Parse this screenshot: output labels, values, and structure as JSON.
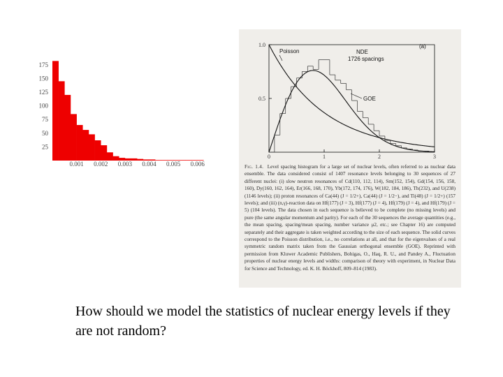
{
  "chart_data": [
    {
      "type": "bar",
      "title": "",
      "xlabel": "",
      "ylabel": "",
      "ylim": [
        0,
        185
      ],
      "xlim": [
        0,
        0.0065
      ],
      "bin_width": 0.00025,
      "bin_starts": [
        0.0,
        0.00025,
        0.0005,
        0.00075,
        0.001,
        0.00125,
        0.0015,
        0.00175,
        0.002,
        0.00225,
        0.0025,
        0.00275,
        0.003,
        0.00325,
        0.0035,
        0.00375,
        0.004,
        0.00425,
        0.0045,
        0.00475,
        0.005,
        0.00525,
        0.0055,
        0.00575,
        0.006
      ],
      "values": [
        182,
        145,
        120,
        85,
        65,
        56,
        48,
        37,
        28,
        15,
        8,
        5,
        4,
        4,
        3,
        2,
        2,
        1,
        1,
        1,
        1,
        1,
        1,
        1,
        1
      ],
      "bar_color": "#ee0000",
      "y_ticks": [
        25,
        50,
        75,
        100,
        125,
        150,
        175
      ],
      "y_tick_labels": [
        "25",
        "50",
        "75",
        "100",
        "125",
        "150",
        "175"
      ],
      "x_ticks": [
        0.001,
        0.002,
        0.003,
        0.004,
        0.005,
        0.006
      ],
      "x_tick_labels": [
        "0.001",
        "0.002",
        "0.003",
        "0.004",
        "0.005",
        "0.006"
      ]
    },
    {
      "type": "line",
      "title": "",
      "xlabel": "",
      "ylabel": "",
      "xlim": [
        0,
        3
      ],
      "ylim": [
        0,
        1.0
      ],
      "x_ticks": [
        0,
        1,
        2,
        3
      ],
      "x_tick_labels": [
        "0",
        "1",
        "2",
        "3"
      ],
      "y_ticks": [
        0.5,
        1.0
      ],
      "y_tick_labels": [
        "0.5",
        "1.0"
      ],
      "panel_label": "(a)",
      "legend_lines": [
        "NDE",
        "1726 spacings"
      ],
      "curve_labels": {
        "poisson": "Poisson",
        "goe": "GOE"
      },
      "histogram": {
        "bin_width": 0.1,
        "bin_starts": [
          0.0,
          0.1,
          0.2,
          0.3,
          0.4,
          0.5,
          0.6,
          0.7,
          0.8,
          0.9,
          1.0,
          1.1,
          1.2,
          1.3,
          1.4,
          1.5,
          1.6,
          1.7,
          1.8,
          1.9,
          2.0,
          2.1,
          2.2,
          2.3,
          2.4,
          2.5,
          2.6,
          2.7,
          2.8,
          2.9
        ],
        "values": [
          0.0,
          0.16,
          0.36,
          0.5,
          0.61,
          0.69,
          0.75,
          0.8,
          0.77,
          0.86,
          0.86,
          0.72,
          0.67,
          0.64,
          0.58,
          0.48,
          0.38,
          0.32,
          0.26,
          0.2,
          0.15,
          0.11,
          0.08,
          0.06,
          0.04,
          0.03,
          0.02,
          0.01,
          0.01,
          0.0
        ]
      },
      "series": [
        {
          "name": "Poisson",
          "function": "exp(-s)"
        },
        {
          "name": "GOE",
          "function": "(pi/2) s exp(-pi s^2 / 4)"
        }
      ]
    }
  ],
  "caption": {
    "fig_label": "Fig. 1.4.",
    "text": "Level spacing histogram for a large set of nuclear levels, often referred to as nuclear data ensemble. The data considered consist of 1407 resonance levels belonging to 30 sequences of 27 different nuclei: (i) slow neutron resonances of Cd(110, 112, 114), Sm(152, 154), Gd(154, 156, 158, 160), Dy(160, 162, 164), Er(166, 168, 170), Yb(172, 174, 176), W(182, 184, 186), Th(232), and U(238) (1146 levels); (ii) proton resonances of Ca(44) (J = 1/2+), Ca(44) (J = 1/2−), and Ti(48) (J = 1/2+) (157 levels); and (iii) (n,γ)-reaction data on Hf(177) (J = 3), Hf(177) (J = 4), Hf(179) (J = 4), and Hf(179) (J = 5) (104 levels). The data chosen in each sequence is believed to be complete (no missing levels) and pure (the same angular momentum and parity). For each of the 30 sequences the average quantities (e.g., the mean spacing, spacing/mean spacing, number variance μ2, etc.; see Chapter 16) are computed separately and their aggregate is taken weighted according to the size of each sequence. The solid curves correspond to the Poisson distribution, i.e., no correlations at all, and that for the eigenvalues of a real symmetric random matrix taken from the Gaussian orthogonal ensemble (GOE). Reprinted with permission from Kluwer Academic Publishers, Bohigas, O., Haq, R. U., and Pandey A., Fluctuation properties of nuclear energy levels and widths: comparison of theory with experiment, in Nuclear Data for Science and Technology, ed. K. H. Böckhoff, 809–814 (1983)."
  },
  "question": "How should we model the statistics of nuclear energy levels if they are not random?",
  "colors": {
    "bar": "#ee0000",
    "scan_background": "#f0eeea",
    "ink": "#111111"
  }
}
